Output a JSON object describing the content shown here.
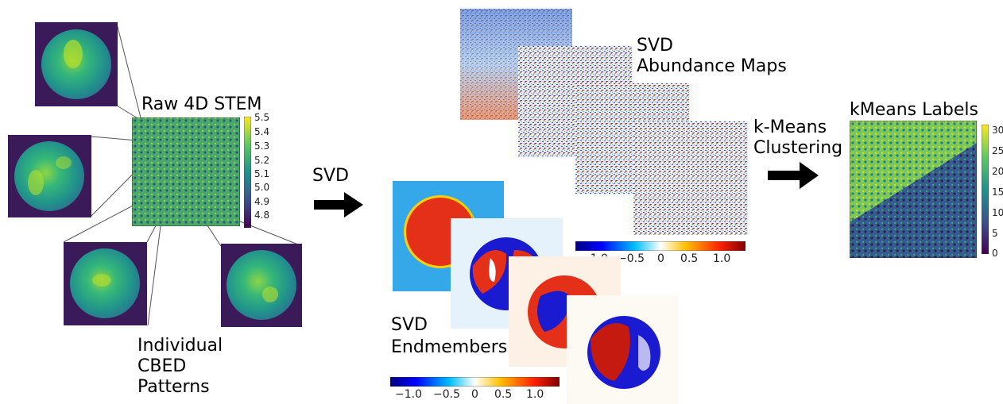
{
  "labels": {
    "raw_title": "Raw 4D STEM",
    "individual": [
      "Individual",
      "CBED",
      "Patterns"
    ],
    "svd_arrow": "SVD",
    "svd_abundance": [
      "SVD",
      "Abundance Maps"
    ],
    "svd_endmembers": [
      "SVD",
      "Endmembers"
    ],
    "kmeans_arrow": [
      "k-Means",
      "Clustering"
    ],
    "kmeans_title": "kMeans Labels"
  },
  "colorbars": {
    "raw": {
      "ticks": [
        "5.5",
        "5.4",
        "5.3",
        "5.2",
        "5.1",
        "5.0",
        "4.9",
        "4.8"
      ],
      "colormap": "viridis"
    },
    "abundance": {
      "ticks": [
        "−1.0",
        "−0.5",
        "0",
        "0.5",
        "1.0"
      ],
      "colormap": "jet"
    },
    "endmembers": {
      "ticks": [
        "−1.0",
        "−0.5",
        "0",
        "0.5",
        "1.0"
      ],
      "colormap": "jet"
    },
    "kmeans": {
      "ticks": [
        "30",
        "25",
        "20",
        "15",
        "10",
        "5",
        "0"
      ],
      "colormap": "viridis"
    }
  },
  "colors": {
    "viridis_dark": "#440154",
    "viridis_mid": "#21918c",
    "viridis_green": "#5ec962",
    "viridis_yellow": "#fde725",
    "jet_blue": "#0000cc",
    "jet_red": "#cc0000",
    "arrow": "#000000"
  }
}
